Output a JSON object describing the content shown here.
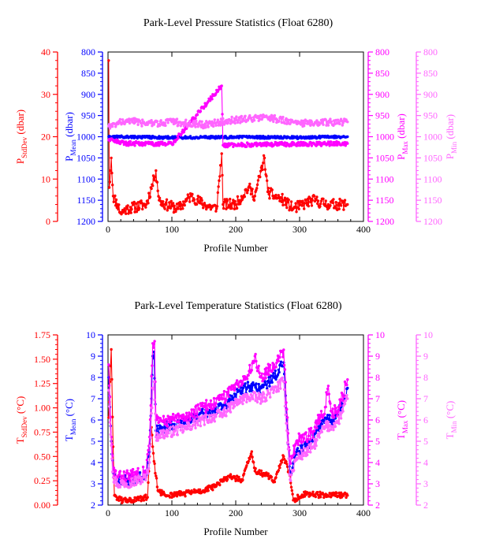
{
  "chart_data": [
    {
      "type": "line",
      "title": "Park-Level Pressure Statistics (Float 6280)",
      "xlabel": "Profile Number",
      "xlim": [
        0,
        400
      ],
      "xticks": [
        "0",
        "100",
        "200",
        "300",
        "400"
      ],
      "grid": false,
      "legend": "none",
      "axes": [
        {
          "id": "stddev",
          "label_main": "P",
          "label_sub": "StdDev",
          "label_unit": " (dbar)",
          "color": "#ff0000",
          "lim": [
            0,
            40
          ],
          "inverted": false,
          "ticks": [
            "0",
            "10",
            "20",
            "30",
            "40"
          ]
        },
        {
          "id": "mean",
          "label_main": "P",
          "label_sub": "Mean",
          "label_unit": " (dbar)",
          "color": "#0000ff",
          "lim": [
            800,
            1200
          ],
          "inverted": true,
          "ticks": [
            "800",
            "850",
            "900",
            "950",
            "1000",
            "1050",
            "1100",
            "1150",
            "1200"
          ]
        },
        {
          "id": "max",
          "label_main": "P",
          "label_sub": "Max",
          "label_unit": " (dbar)",
          "color": "#ff00ff",
          "lim": [
            800,
            1200
          ],
          "inverted": true,
          "ticks": [
            "800",
            "850",
            "900",
            "950",
            "1000",
            "1050",
            "1100",
            "1150",
            "1200"
          ]
        },
        {
          "id": "min",
          "label_main": "P",
          "label_sub": "Min",
          "label_unit": " (dbar)",
          "color": "#ff66ff",
          "lim": [
            800,
            1200
          ],
          "inverted": true,
          "ticks": [
            "800",
            "850",
            "900",
            "950",
            "1000",
            "1050",
            "1100",
            "1150",
            "1200"
          ]
        }
      ],
      "series": [
        {
          "axis": "stddev",
          "color": "#ff0000",
          "baseline": 3.5,
          "amplitude": 1.3,
          "seed": 11,
          "x_end": 375,
          "points": [
            [
              1,
              38
            ],
            [
              2,
              8
            ],
            [
              4,
              12
            ],
            [
              5,
              15
            ],
            [
              8,
              6
            ],
            [
              15,
              4
            ],
            [
              20,
              2
            ],
            [
              30,
              3
            ],
            [
              60,
              4
            ],
            [
              72,
              10
            ],
            [
              75,
              12
            ],
            [
              80,
              5
            ],
            [
              90,
              4
            ],
            [
              110,
              3
            ],
            [
              130,
              6
            ],
            [
              150,
              4
            ],
            [
              170,
              3
            ],
            [
              178,
              16
            ],
            [
              180,
              4
            ],
            [
              200,
              4
            ],
            [
              220,
              8
            ],
            [
              230,
              6
            ],
            [
              245,
              15
            ],
            [
              250,
              7
            ],
            [
              260,
              6
            ],
            [
              275,
              5
            ],
            [
              290,
              3
            ],
            [
              320,
              5
            ],
            [
              345,
              4
            ],
            [
              375,
              4
            ]
          ]
        },
        {
          "axis": "mean",
          "color": "#0000ff",
          "baseline": 1001,
          "amplitude": 3,
          "seed": 23,
          "x_end": 375,
          "points": [
            [
              1,
              1000
            ],
            [
              100,
              1002
            ],
            [
              200,
              1001
            ],
            [
              300,
              1002
            ],
            [
              375,
              1000
            ]
          ]
        },
        {
          "axis": "max",
          "color": "#ff00ff",
          "baseline": 1015,
          "amplitude": 5,
          "seed": 37,
          "x_end": 375,
          "points": [
            [
              1,
              1008
            ],
            [
              30,
              1016
            ],
            [
              100,
              1017
            ],
            [
              178,
              880
            ],
            [
              180,
              1020
            ],
            [
              250,
              1018
            ],
            [
              375,
              1016
            ]
          ]
        },
        {
          "axis": "min",
          "color": "#ff66ff",
          "baseline": 968,
          "amplitude": 8,
          "seed": 51,
          "x_end": 375,
          "points": [
            [
              1,
              975
            ],
            [
              30,
              960
            ],
            [
              60,
              970
            ],
            [
              100,
              965
            ],
            [
              150,
              972
            ],
            [
              200,
              960
            ],
            [
              250,
              955
            ],
            [
              300,
              968
            ],
            [
              375,
              965
            ]
          ]
        }
      ]
    },
    {
      "type": "line",
      "title": "Park-Level Temperature Statistics (Float 6280)",
      "xlabel": "Profile Number",
      "xlim": [
        0,
        400
      ],
      "xticks": [
        "0",
        "100",
        "200",
        "300",
        "400"
      ],
      "grid": false,
      "legend": "none",
      "axes": [
        {
          "id": "stddev",
          "label_main": "T",
          "label_sub": "StdDev",
          "label_unit": " (°C)",
          "color": "#ff0000",
          "lim": [
            0,
            1.75
          ],
          "inverted": false,
          "ticks": [
            "0.00",
            "0.25",
            "0.50",
            "0.75",
            "1.00",
            "1.25",
            "1.50",
            "1.75"
          ]
        },
        {
          "id": "mean",
          "label_main": "T",
          "label_sub": "Mean",
          "label_unit": " (°C)",
          "color": "#0000ff",
          "lim": [
            2,
            10
          ],
          "inverted": false,
          "ticks": [
            "2",
            "3",
            "4",
            "5",
            "6",
            "7",
            "8",
            "9",
            "10"
          ]
        },
        {
          "id": "max",
          "label_main": "T",
          "label_sub": "Max",
          "label_unit": " (°C)",
          "color": "#ff00ff",
          "lim": [
            2,
            10
          ],
          "inverted": false,
          "ticks": [
            "2",
            "3",
            "4",
            "5",
            "6",
            "7",
            "8",
            "9",
            "10"
          ]
        },
        {
          "id": "min",
          "label_main": "T",
          "label_sub": "Min",
          "label_unit": " (°C)",
          "color": "#ff66ff",
          "lim": [
            2,
            10
          ],
          "inverted": false,
          "ticks": [
            "2",
            "3",
            "4",
            "5",
            "6",
            "7",
            "8",
            "9",
            "10"
          ]
        }
      ],
      "series": [
        {
          "axis": "stddev",
          "color": "#ff0000",
          "baseline": 0.08,
          "amplitude": 0.03,
          "seed": 61,
          "x_end": 375,
          "points": [
            [
              1,
              0.9
            ],
            [
              5,
              1.6
            ],
            [
              8,
              0.6
            ],
            [
              10,
              0.1
            ],
            [
              20,
              0.05
            ],
            [
              40,
              0.05
            ],
            [
              62,
              0.08
            ],
            [
              65,
              0.5
            ],
            [
              68,
              0.8
            ],
            [
              70,
              0.6
            ],
            [
              72,
              0.45
            ],
            [
              75,
              0.3
            ],
            [
              78,
              0.15
            ],
            [
              90,
              0.1
            ],
            [
              120,
              0.12
            ],
            [
              150,
              0.15
            ],
            [
              170,
              0.2
            ],
            [
              190,
              0.3
            ],
            [
              210,
              0.25
            ],
            [
              225,
              0.55
            ],
            [
              230,
              0.35
            ],
            [
              250,
              0.3
            ],
            [
              260,
              0.25
            ],
            [
              275,
              0.5
            ],
            [
              285,
              0.3
            ],
            [
              290,
              0.05
            ],
            [
              310,
              0.12
            ],
            [
              340,
              0.1
            ],
            [
              375,
              0.1
            ]
          ]
        },
        {
          "axis": "mean",
          "color": "#0000ff",
          "baseline": 0,
          "amplitude": 0.25,
          "seed": 71,
          "x_end": 375,
          "points": [
            [
              1,
              8
            ],
            [
              5,
              5
            ],
            [
              8,
              3.5
            ],
            [
              15,
              3.1
            ],
            [
              40,
              3.2
            ],
            [
              60,
              3.4
            ],
            [
              65,
              4.5
            ],
            [
              70,
              9
            ],
            [
              72,
              9.2
            ],
            [
              75,
              5.5
            ],
            [
              80,
              5.6
            ],
            [
              120,
              5.9
            ],
            [
              150,
              6.3
            ],
            [
              180,
              6.6
            ],
            [
              200,
              7.2
            ],
            [
              220,
              7.6
            ],
            [
              240,
              7.5
            ],
            [
              260,
              8
            ],
            [
              275,
              8.7
            ],
            [
              280,
              6
            ],
            [
              285,
              3.5
            ],
            [
              295,
              4.5
            ],
            [
              320,
              5
            ],
            [
              340,
              6.1
            ],
            [
              350,
              6
            ],
            [
              360,
              6.2
            ],
            [
              375,
              7.5
            ]
          ]
        },
        {
          "axis": "max",
          "color": "#ff00ff",
          "baseline": 0,
          "amplitude": 0.3,
          "seed": 83,
          "x_end": 375,
          "points": [
            [
              1,
              8.6
            ],
            [
              5,
              5.2
            ],
            [
              8,
              3.7
            ],
            [
              15,
              3.3
            ],
            [
              40,
              3.4
            ],
            [
              60,
              3.6
            ],
            [
              65,
              5.2
            ],
            [
              70,
              9.6
            ],
            [
              73,
              9.7
            ],
            [
              75,
              6
            ],
            [
              80,
              5.9
            ],
            [
              120,
              6.1
            ],
            [
              150,
              6.6
            ],
            [
              180,
              7
            ],
            [
              200,
              7.7
            ],
            [
              220,
              8.1
            ],
            [
              230,
              9
            ],
            [
              240,
              8
            ],
            [
              260,
              8.6
            ],
            [
              275,
              9.3
            ],
            [
              280,
              6.5
            ],
            [
              285,
              4
            ],
            [
              295,
              5
            ],
            [
              320,
              5.4
            ],
            [
              340,
              6.6
            ],
            [
              345,
              7.6
            ],
            [
              350,
              6.4
            ],
            [
              360,
              6.4
            ],
            [
              375,
              7.9
            ]
          ]
        },
        {
          "axis": "min",
          "color": "#ff66ff",
          "baseline": 0,
          "amplitude": 0.25,
          "seed": 97,
          "x_end": 375,
          "points": [
            [
              1,
              7.4
            ],
            [
              5,
              4.8
            ],
            [
              8,
              3.3
            ],
            [
              15,
              3
            ],
            [
              40,
              3.1
            ],
            [
              60,
              3.3
            ],
            [
              65,
              4
            ],
            [
              70,
              7.5
            ],
            [
              72,
              7.8
            ],
            [
              75,
              5.2
            ],
            [
              80,
              5.3
            ],
            [
              120,
              5.6
            ],
            [
              150,
              6
            ],
            [
              180,
              6.3
            ],
            [
              200,
              6.8
            ],
            [
              220,
              7.1
            ],
            [
              240,
              7
            ],
            [
              260,
              7.4
            ],
            [
              275,
              7.8
            ],
            [
              280,
              5.5
            ],
            [
              285,
              3.2
            ],
            [
              295,
              4.2
            ],
            [
              320,
              4.7
            ],
            [
              340,
              5.7
            ],
            [
              350,
              5.7
            ],
            [
              360,
              5.9
            ],
            [
              375,
              7
            ]
          ]
        }
      ]
    }
  ]
}
